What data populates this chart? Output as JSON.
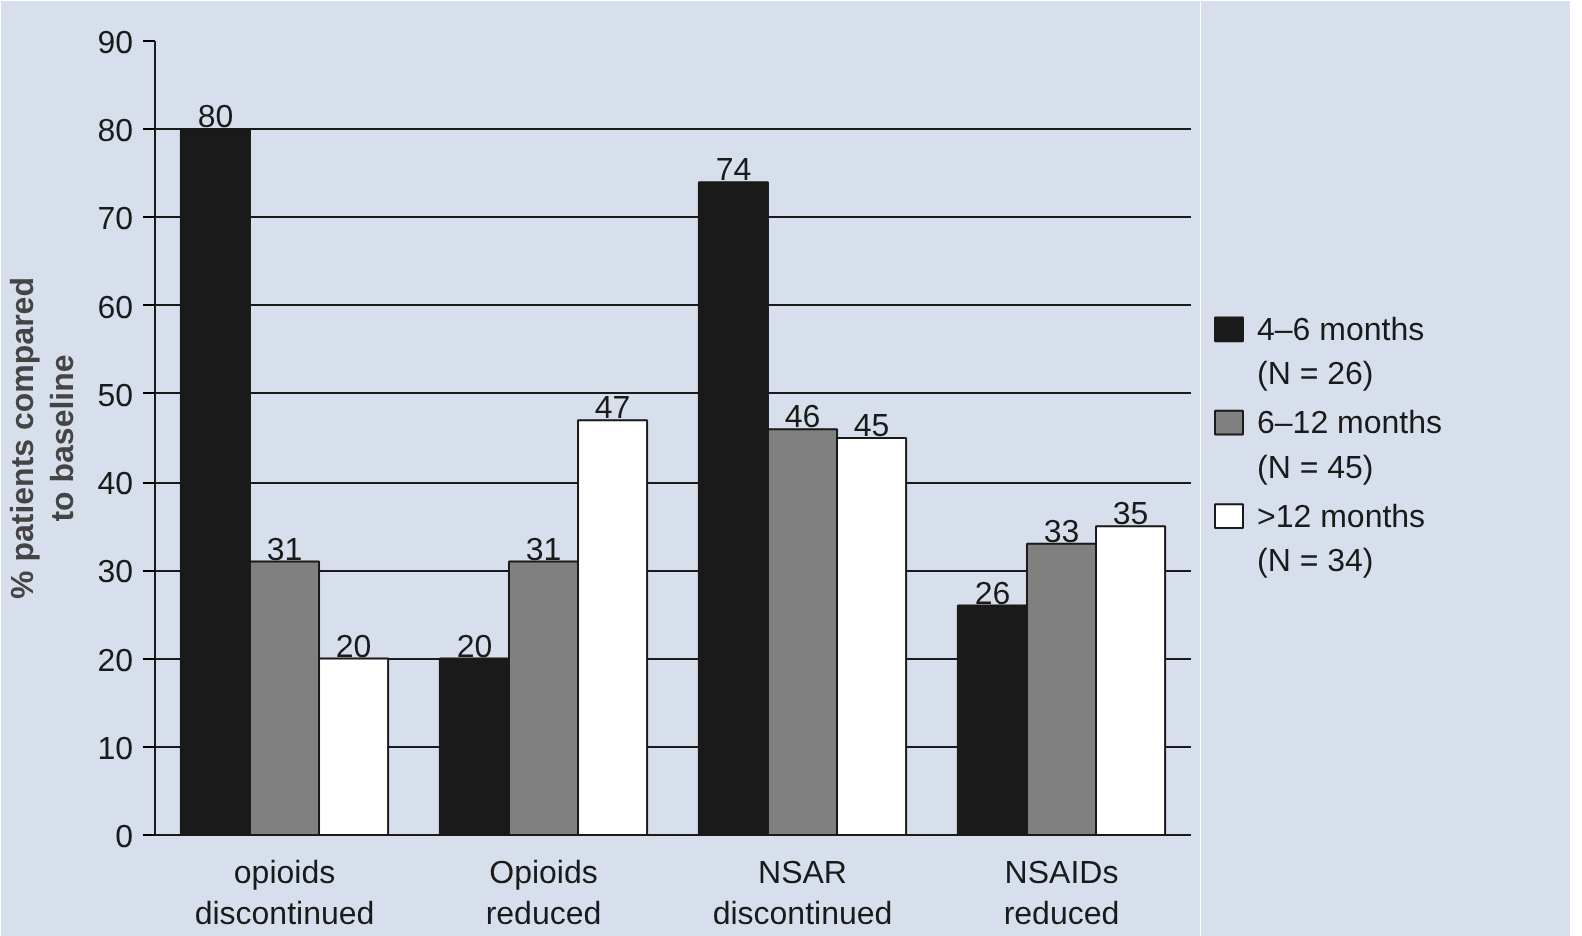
{
  "chart_data": {
    "type": "bar",
    "ylabel": "% patients compared\nto baseline",
    "categories": [
      "opioids\ndiscontinued",
      "Opioids\nreduced",
      "NSAR\ndiscontinued",
      "NSAIDs\nreduced"
    ],
    "series": [
      {
        "name": "4–6 months\n(N = 26)",
        "color": "#1a1a1a",
        "values": [
          80,
          20,
          74,
          26
        ]
      },
      {
        "name": "6–12 months\n(N = 45)",
        "color": "#808080",
        "values": [
          31,
          31,
          46,
          33
        ]
      },
      {
        "name": ">12 months\n(N = 34)",
        "color": "#ffffff",
        "values": [
          20,
          47,
          45,
          35
        ]
      }
    ],
    "ylim": [
      0,
      90
    ],
    "yticks": [
      0,
      10,
      20,
      30,
      40,
      50,
      60,
      70,
      80,
      90
    ],
    "grid": "y",
    "legend": "right",
    "data_labels": true
  }
}
